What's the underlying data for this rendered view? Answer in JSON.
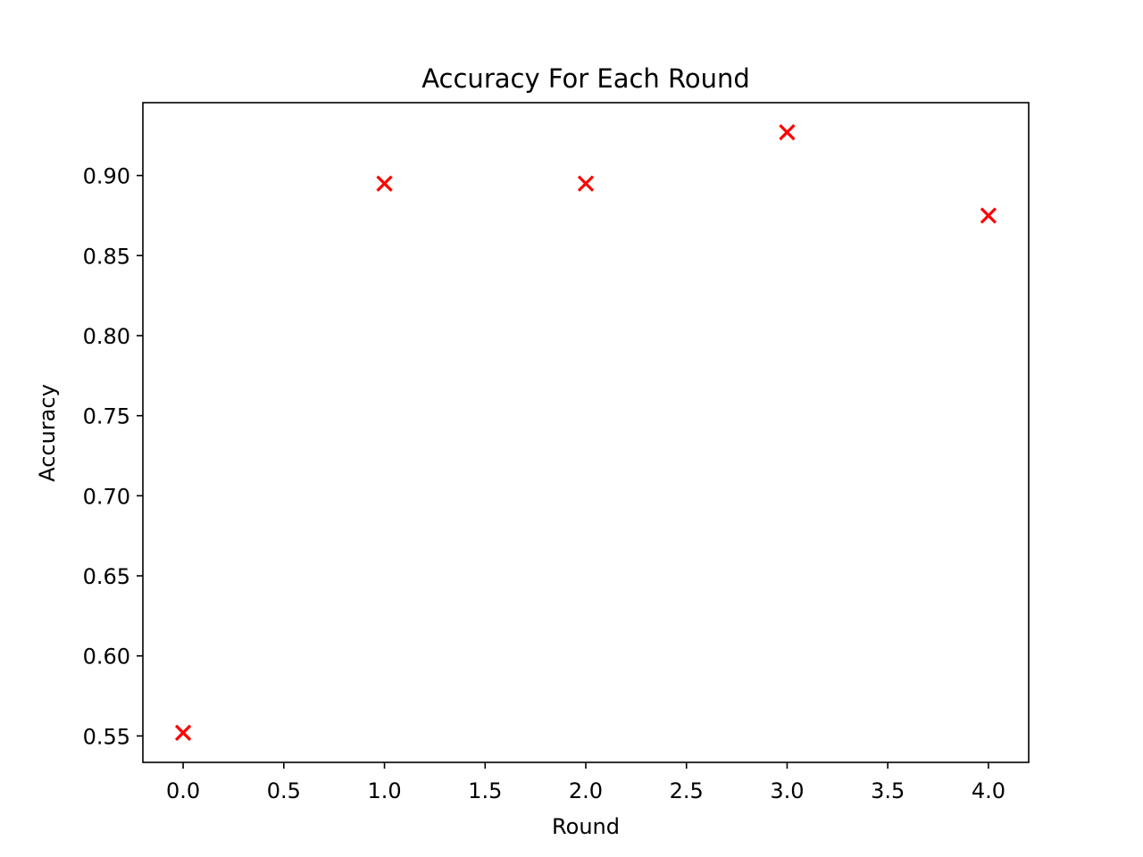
{
  "chart_data": {
    "type": "scatter",
    "title": "Accuracy For Each Round",
    "xlabel": "Round",
    "ylabel": "Accuracy",
    "xlim": [
      -0.2,
      4.2
    ],
    "ylim": [
      0.5335,
      0.9455
    ],
    "xticks": [
      0.0,
      0.5,
      1.0,
      1.5,
      2.0,
      2.5,
      3.0,
      3.5,
      4.0
    ],
    "xtick_labels": [
      "0.0",
      "0.5",
      "1.0",
      "1.5",
      "2.0",
      "2.5",
      "3.0",
      "3.5",
      "4.0"
    ],
    "yticks": [
      0.55,
      0.6,
      0.65,
      0.7,
      0.75,
      0.8,
      0.85,
      0.9
    ],
    "ytick_labels": [
      "0.55",
      "0.60",
      "0.65",
      "0.70",
      "0.75",
      "0.80",
      "0.85",
      "0.90"
    ],
    "grid": false,
    "marker": "x",
    "marker_color": "#ff0000",
    "series": [
      {
        "x": [
          0,
          1,
          2,
          3,
          4
        ],
        "y": [
          0.552,
          0.895,
          0.895,
          0.927,
          0.875
        ]
      }
    ]
  }
}
